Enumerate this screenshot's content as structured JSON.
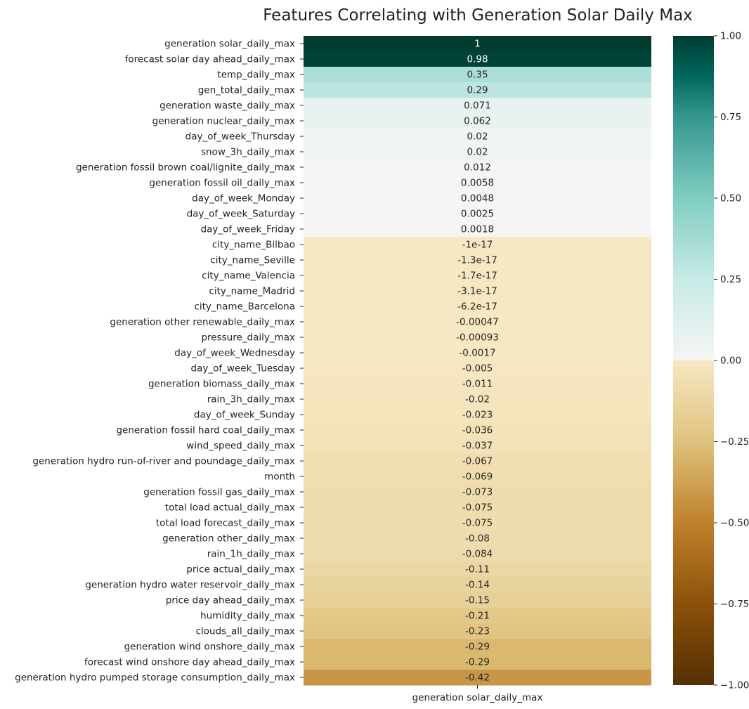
{
  "chart_data": {
    "type": "heatmap",
    "title": "Features Correlating with Generation Solar Daily Max",
    "xlabel": "",
    "ylabel": "",
    "columns": [
      "generation solar_daily_max"
    ],
    "rows": [
      "generation solar_daily_max",
      "forecast solar day ahead_daily_max",
      "temp_daily_max",
      "gen_total_daily_max",
      "generation waste_daily_max",
      "generation nuclear_daily_max",
      "day_of_week_Thursday",
      "snow_3h_daily_max",
      "generation fossil brown coal/lignite_daily_max",
      "generation fossil oil_daily_max",
      "day_of_week_Monday",
      "day_of_week_Saturday",
      "day_of_week_Friday",
      "city_name_Bilbao",
      "city_name_Seville",
      "city_name_Valencia",
      "city_name_Madrid",
      "city_name_Barcelona",
      "generation other renewable_daily_max",
      "pressure_daily_max",
      "day_of_week_Wednesday",
      "day_of_week_Tuesday",
      "generation biomass_daily_max",
      "rain_3h_daily_max",
      "day_of_week_Sunday",
      "generation fossil hard coal_daily_max",
      "wind_speed_daily_max",
      "generation hydro run-of-river and poundage_daily_max",
      "month",
      "generation fossil gas_daily_max",
      "total load actual_daily_max",
      "total load forecast_daily_max",
      "generation other_daily_max",
      "rain_1h_daily_max",
      "price actual_daily_max",
      "generation hydro water reservoir_daily_max",
      "price day ahead_daily_max",
      "humidity_daily_max",
      "clouds_all_daily_max",
      "generation wind onshore_daily_max",
      "forecast wind onshore day ahead_daily_max",
      "generation hydro pumped storage consumption_daily_max"
    ],
    "values": [
      1,
      0.98,
      0.35,
      0.29,
      0.071,
      0.062,
      0.02,
      0.02,
      0.012,
      0.0058,
      0.0048,
      0.0025,
      0.0018,
      -1e-17,
      -1.3e-17,
      -1.7e-17,
      -3.1e-17,
      -6.2e-17,
      -0.00047,
      -0.00093,
      -0.0017,
      -0.005,
      -0.011,
      -0.02,
      -0.023,
      -0.036,
      -0.037,
      -0.067,
      -0.069,
      -0.073,
      -0.075,
      -0.075,
      -0.08,
      -0.084,
      -0.11,
      -0.14,
      -0.15,
      -0.21,
      -0.23,
      -0.29,
      -0.29,
      -0.42
    ],
    "value_labels": [
      "1",
      "0.98",
      "0.35",
      "0.29",
      "0.071",
      "0.062",
      "0.02",
      "0.02",
      "0.012",
      "0.0058",
      "0.0048",
      "0.0025",
      "0.0018",
      "-1e-17",
      "-1.3e-17",
      "-1.7e-17",
      "-3.1e-17",
      "-6.2e-17",
      "-0.00047",
      "-0.00093",
      "-0.0017",
      "-0.005",
      "-0.011",
      "-0.02",
      "-0.023",
      "-0.036",
      "-0.037",
      "-0.067",
      "-0.069",
      "-0.073",
      "-0.075",
      "-0.075",
      "-0.08",
      "-0.084",
      "-0.11",
      "-0.14",
      "-0.15",
      "-0.21",
      "-0.23",
      "-0.29",
      "-0.29",
      "-0.42"
    ],
    "colorbar": {
      "colormap": "BrBG",
      "vmin": -1,
      "vmax": 1,
      "ticks": [
        1,
        0.75,
        0.5,
        0.25,
        0,
        -0.25,
        -0.5,
        -0.75,
        -1
      ],
      "tick_labels": [
        "1.00",
        "0.75",
        "0.50",
        "0.25",
        "0.00",
        "−0.25",
        "−0.50",
        "−0.75",
        "−1.00"
      ]
    },
    "colormap_stops": [
      {
        "v": -1.0,
        "color": "#543005"
      },
      {
        "v": -0.75,
        "color": "#8c510a"
      },
      {
        "v": -0.5,
        "color": "#bf812d"
      },
      {
        "v": -0.25,
        "color": "#dfc27d"
      },
      {
        "v": 0.0,
        "color": "#f6e8c3"
      },
      {
        "v": 0.0001,
        "color": "#f5f5f5"
      },
      {
        "v": 0.25,
        "color": "#c7eae5"
      },
      {
        "v": 0.5,
        "color": "#80cdc1"
      },
      {
        "v": 0.75,
        "color": "#35978f"
      },
      {
        "v": 0.88,
        "color": "#01665e"
      },
      {
        "v": 1.0,
        "color": "#003c30"
      }
    ]
  }
}
